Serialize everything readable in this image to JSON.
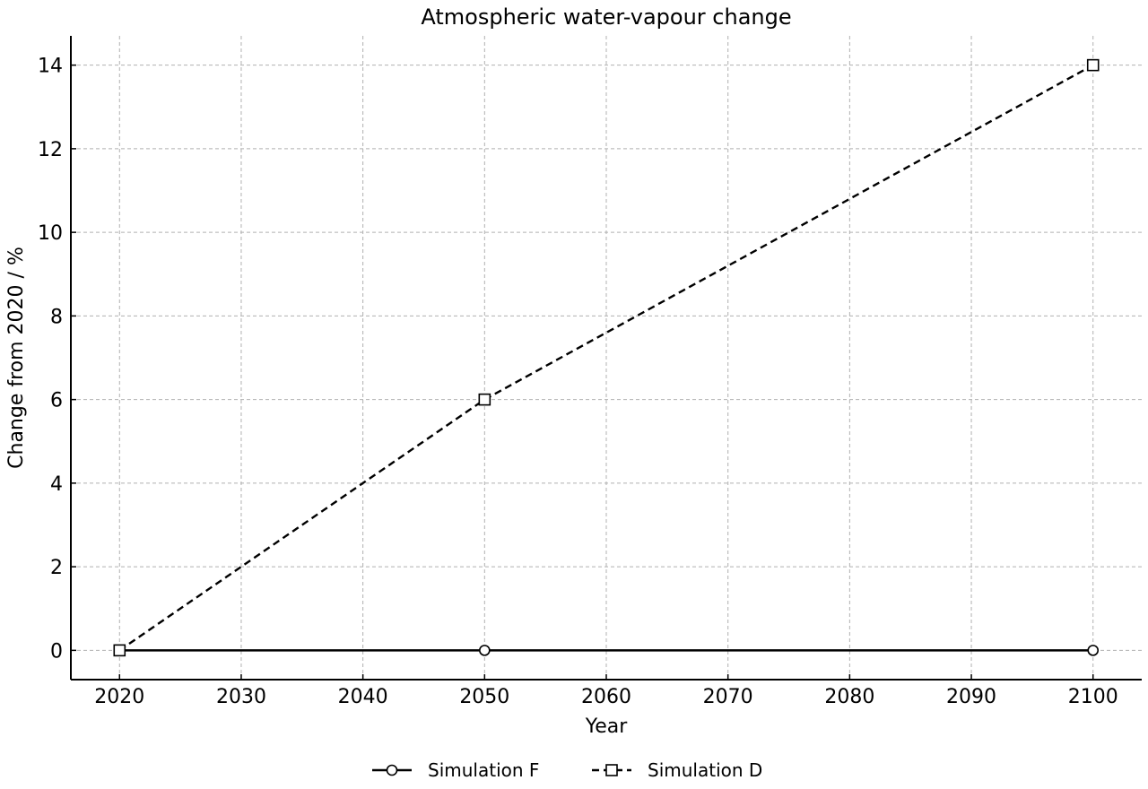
{
  "chart_data": {
    "type": "line",
    "title": "Atmospheric water-vapour change",
    "xlabel": "Year",
    "ylabel": "Change from 2020 / %",
    "xlim": [
      2016,
      2104
    ],
    "ylim": [
      -0.7,
      14.7
    ],
    "xticks": [
      2020,
      2030,
      2040,
      2050,
      2060,
      2070,
      2080,
      2090,
      2100
    ],
    "yticks": [
      0,
      2,
      4,
      6,
      8,
      10,
      12,
      14
    ],
    "grid": true,
    "legend_position": "bottom-center",
    "series": [
      {
        "name": "Simulation F",
        "x": [
          2020,
          2050,
          2100
        ],
        "values": [
          0,
          0,
          0
        ],
        "line": "solid",
        "marker": "circle",
        "color": "#000000"
      },
      {
        "name": "Simulation D",
        "x": [
          2020,
          2050,
          2100
        ],
        "values": [
          0,
          6,
          14
        ],
        "line": "dashed",
        "marker": "square",
        "color": "#000000"
      }
    ]
  }
}
